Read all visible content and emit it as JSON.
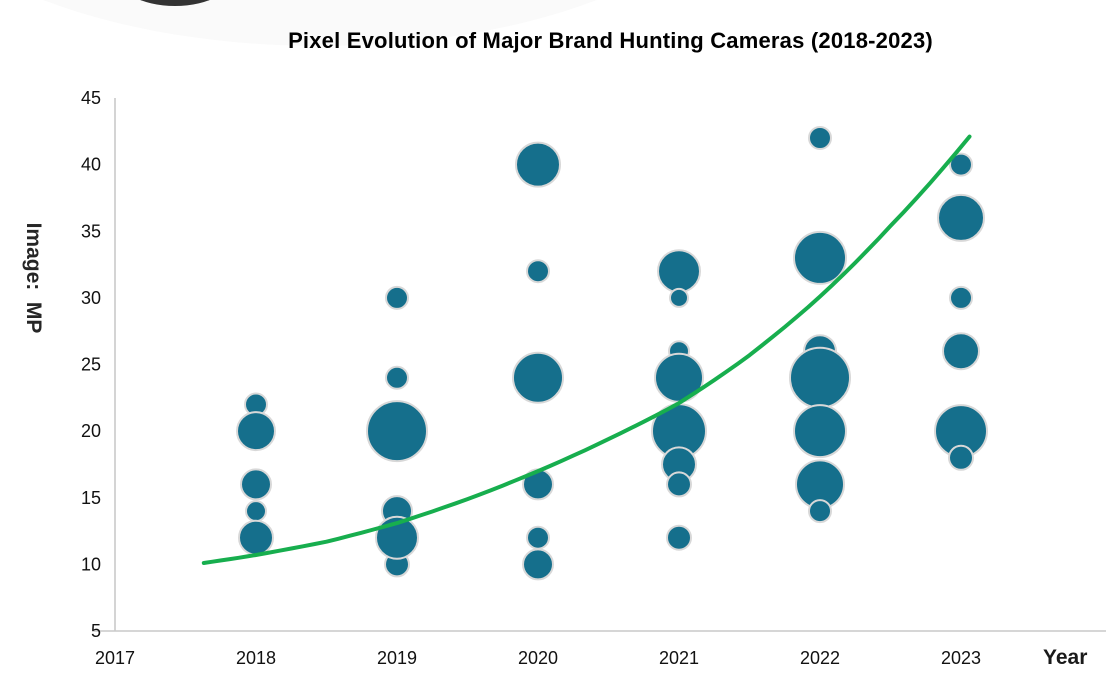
{
  "title": "Pixel Evolution of Major Brand Hunting Cameras (2018-2023)",
  "x_axis": {
    "title": "Year",
    "ticks": [
      2017,
      2018,
      2019,
      2020,
      2021,
      2022,
      2023
    ]
  },
  "y_axis": {
    "title": "Image:  MP",
    "ticks": [
      45,
      40,
      35,
      30,
      25,
      20,
      15,
      10,
      5
    ]
  },
  "colors": {
    "background": "#ffffff",
    "bubble_fill": "#156F8C",
    "bubble_stroke": "#d8d8d8",
    "trendline": "#17AE4E",
    "axis_line": "#c9c9c9",
    "tick_text": "#111111",
    "title_text": "#000000"
  },
  "chart_data": {
    "type": "scatter",
    "subtype": "bubble",
    "title": "Pixel Evolution of Major Brand Hunting Cameras (2018-2023)",
    "xlabel": "Year",
    "ylabel": "Image:  MP",
    "xlim": [
      2017,
      2024
    ],
    "ylim": [
      5,
      45
    ],
    "grid": false,
    "legend": "none",
    "bubble_size_unit": "marker radius, px",
    "series": [
      {
        "year": 2018,
        "bubbles": [
          {
            "mp": 22,
            "r": 11
          },
          {
            "mp": 20,
            "r": 19
          },
          {
            "mp": 16,
            "r": 15
          },
          {
            "mp": 14,
            "r": 10
          },
          {
            "mp": 12,
            "r": 17
          }
        ]
      },
      {
        "year": 2019,
        "bubbles": [
          {
            "mp": 30,
            "r": 11
          },
          {
            "mp": 24,
            "r": 11
          },
          {
            "mp": 20,
            "r": 30
          },
          {
            "mp": 14,
            "r": 15
          },
          {
            "mp": 10,
            "r": 12
          },
          {
            "mp": 12,
            "r": 21
          }
        ]
      },
      {
        "year": 2020,
        "bubbles": [
          {
            "mp": 40,
            "r": 22
          },
          {
            "mp": 32,
            "r": 11
          },
          {
            "mp": 24,
            "r": 25
          },
          {
            "mp": 16,
            "r": 15
          },
          {
            "mp": 12,
            "r": 11
          },
          {
            "mp": 10,
            "r": 15
          }
        ]
      },
      {
        "year": 2021,
        "bubbles": [
          {
            "mp": 32,
            "r": 21
          },
          {
            "mp": 30,
            "r": 9
          },
          {
            "mp": 26,
            "r": 10
          },
          {
            "mp": 24,
            "r": 24
          },
          {
            "mp": 20,
            "r": 27
          },
          {
            "mp": 17.5,
            "r": 17
          },
          {
            "mp": 16,
            "r": 12
          },
          {
            "mp": 12,
            "r": 12
          }
        ]
      },
      {
        "year": 2022,
        "bubbles": [
          {
            "mp": 42,
            "r": 11
          },
          {
            "mp": 33,
            "r": 26
          },
          {
            "mp": 26,
            "r": 16
          },
          {
            "mp": 24,
            "r": 30
          },
          {
            "mp": 20,
            "r": 26
          },
          {
            "mp": 16,
            "r": 24
          },
          {
            "mp": 14,
            "r": 11
          }
        ]
      },
      {
        "year": 2023,
        "bubbles": [
          {
            "mp": 40,
            "r": 11
          },
          {
            "mp": 36,
            "r": 23
          },
          {
            "mp": 30,
            "r": 11
          },
          {
            "mp": 26,
            "r": 18
          },
          {
            "mp": 20,
            "r": 26
          },
          {
            "mp": 18,
            "r": 12
          }
        ]
      }
    ],
    "trendline": {
      "shape": "exponential",
      "points": [
        [
          2017.63,
          10.1
        ],
        [
          2018,
          10.7
        ],
        [
          2018.5,
          11.7
        ],
        [
          2019,
          13.1
        ],
        [
          2019.5,
          14.9
        ],
        [
          2020,
          17.0
        ],
        [
          2020.5,
          19.4
        ],
        [
          2021,
          22.1
        ],
        [
          2021.5,
          25.7
        ],
        [
          2022,
          30.1
        ],
        [
          2022.5,
          35.4
        ],
        [
          2023.06,
          42.1
        ]
      ]
    }
  }
}
